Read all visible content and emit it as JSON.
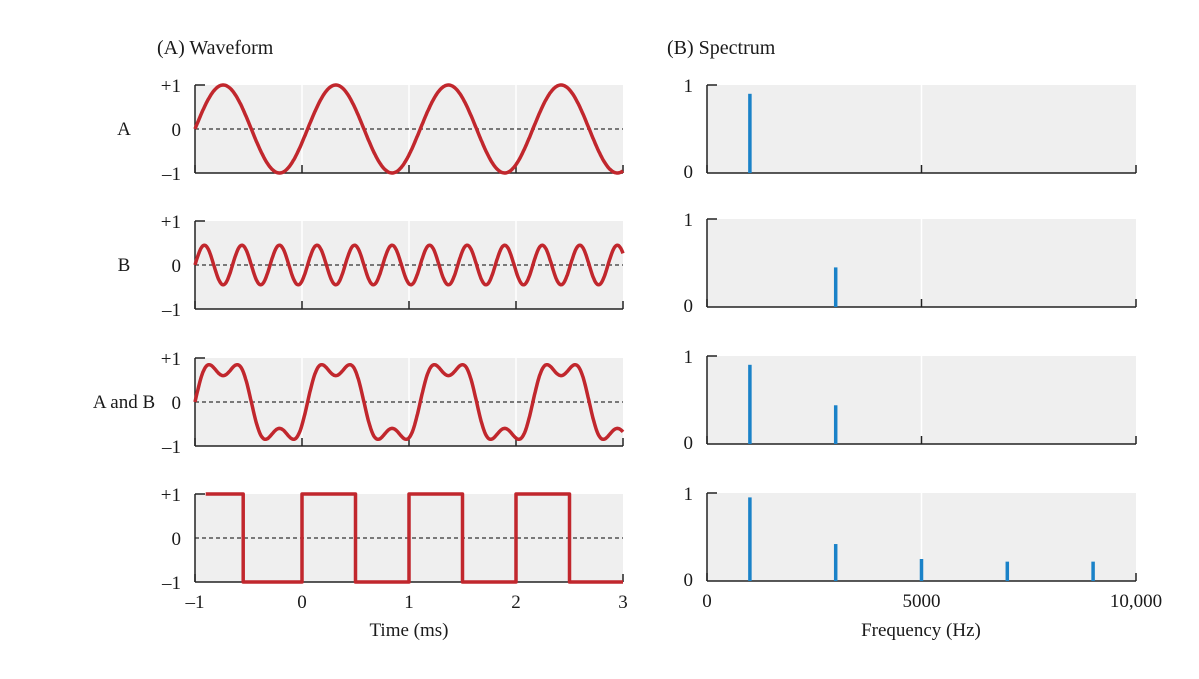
{
  "chart_data": [
    {
      "type": "line",
      "title": "(A)  Waveform",
      "xlabel": "Time (ms)",
      "xlim": [
        -1,
        3
      ],
      "xticks": [
        -1,
        0,
        1,
        2,
        3
      ],
      "x_tick_labels": [
        "–1",
        "0",
        "1",
        "2",
        "3"
      ],
      "ylim": [
        -1,
        1
      ],
      "y_tick_labels": [
        "+1",
        "0",
        "–1"
      ],
      "grid": "vertical gridlines at each ms, dashed zero line",
      "line_color": "#c1272d",
      "rows": [
        {
          "label": "A",
          "series": {
            "kind": "sine",
            "frequency_khz": 0.95,
            "amplitude": 1.0
          }
        },
        {
          "label": "B",
          "series": {
            "kind": "sine",
            "frequency_khz": 2.85,
            "amplitude": 0.45
          }
        },
        {
          "label": "A and B",
          "series": {
            "kind": "sum",
            "components": [
              {
                "frequency_khz": 0.95,
                "amplitude": 0.9
              },
              {
                "frequency_khz": 2.85,
                "amplitude": 0.3
              }
            ]
          }
        },
        {
          "label": "",
          "series": {
            "kind": "square",
            "points": [
              [
                -0.9,
                1
              ],
              [
                -0.55,
                1
              ],
              [
                -0.55,
                -1
              ],
              [
                0.0,
                -1
              ],
              [
                0.0,
                1
              ],
              [
                0.5,
                1
              ],
              [
                0.5,
                -1
              ],
              [
                1.0,
                -1
              ],
              [
                1.0,
                1
              ],
              [
                1.5,
                1
              ],
              [
                1.5,
                -1
              ],
              [
                2.0,
                -1
              ],
              [
                2.0,
                1
              ],
              [
                2.5,
                1
              ],
              [
                2.5,
                -1
              ],
              [
                3.0,
                -1
              ]
            ]
          }
        }
      ]
    },
    {
      "type": "bar",
      "title": "(B)  Spectrum",
      "xlabel": "Frequency (Hz)",
      "xlim": [
        0,
        10000
      ],
      "xticks": [
        0,
        5000,
        10000
      ],
      "x_tick_labels": [
        "0",
        "5000",
        "10,000"
      ],
      "ylim": [
        0,
        1
      ],
      "y_tick_labels": [
        "1",
        "0"
      ],
      "bar_color": "#1a82c8",
      "rows": [
        {
          "bars": [
            {
              "x": 1000,
              "y": 0.9
            }
          ]
        },
        {
          "bars": [
            {
              "x": 3000,
              "y": 0.45
            }
          ]
        },
        {
          "bars": [
            {
              "x": 1000,
              "y": 0.9
            },
            {
              "x": 3000,
              "y": 0.44
            }
          ]
        },
        {
          "bars": [
            {
              "x": 1000,
              "y": 0.95
            },
            {
              "x": 3000,
              "y": 0.42
            },
            {
              "x": 5000,
              "y": 0.25
            },
            {
              "x": 7000,
              "y": 0.22
            },
            {
              "x": 9000,
              "y": 0.22
            }
          ]
        }
      ]
    }
  ]
}
